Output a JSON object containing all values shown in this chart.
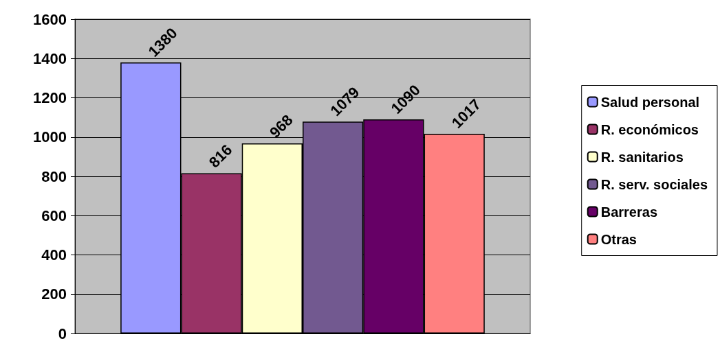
{
  "chart_data": {
    "type": "bar",
    "categories": [
      null
    ],
    "series": [
      {
        "name": "Salud personal",
        "color": "#9999ff",
        "values": [
          1380
        ]
      },
      {
        "name": "R. económicos",
        "color": "#993366",
        "values": [
          816
        ]
      },
      {
        "name": "R. sanitarios",
        "color": "#ffffcc",
        "values": [
          968
        ]
      },
      {
        "name": "R. serv. sociales",
        "color": "#725990",
        "values": [
          1079
        ]
      },
      {
        "name": "Barreras",
        "color": "#660066",
        "values": [
          1090
        ]
      },
      {
        "name": "Otras",
        "color": "#ff8080",
        "values": [
          1017
        ]
      }
    ],
    "ylim": [
      0,
      1600
    ],
    "yticks": [
      0,
      200,
      400,
      600,
      800,
      1000,
      1200,
      1400,
      1600
    ],
    "grid": "y",
    "legend": "right",
    "data_labels": true
  }
}
